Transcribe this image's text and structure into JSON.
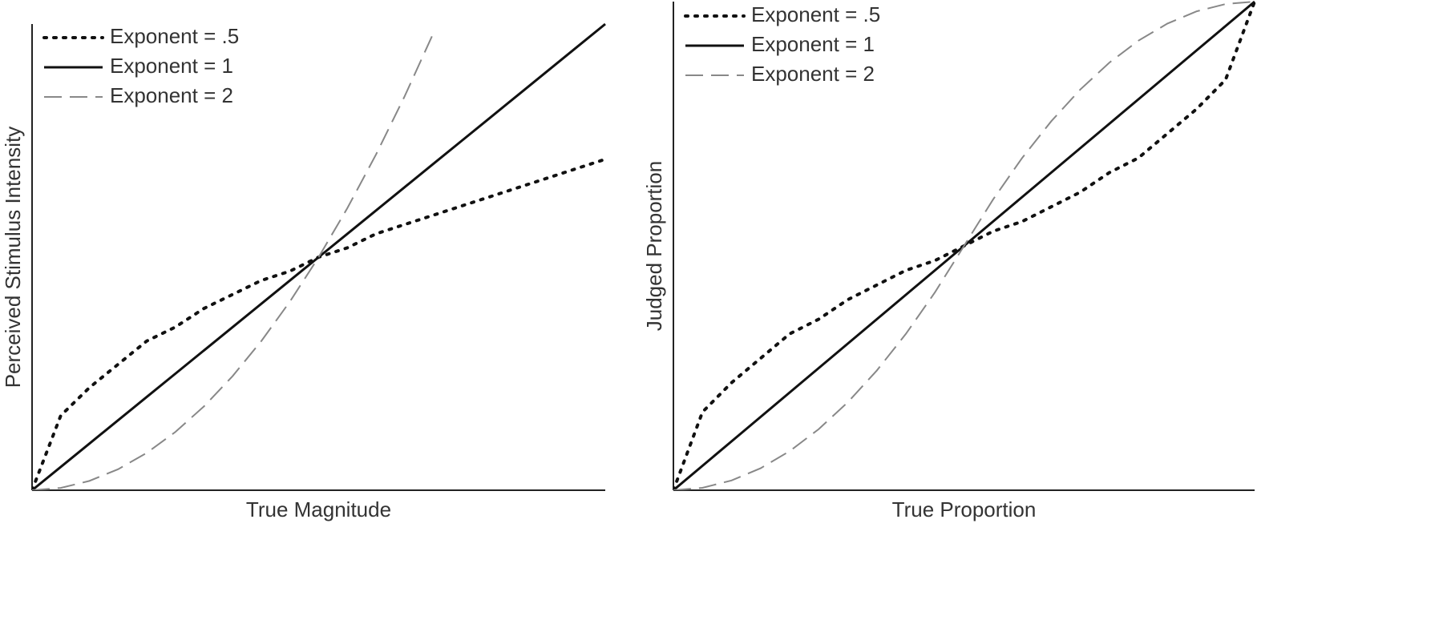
{
  "chart_data": [
    {
      "type": "line",
      "x_label": "True Magnitude",
      "y_label": "Perceived Stimulus Intensity",
      "xlim": [
        0,
        1
      ],
      "ylim": [
        0,
        1
      ],
      "legend": "upper left",
      "x": [
        0,
        0.05,
        0.1,
        0.15,
        0.2,
        0.25,
        0.3,
        0.35,
        0.4,
        0.45,
        0.5,
        0.55,
        0.6,
        0.65,
        0.7,
        0.75,
        0.8,
        0.85,
        0.9,
        0.95,
        1
      ],
      "series": [
        {
          "name": "Exponent = .5",
          "color": "#111111",
          "style": "dotted",
          "values": [
            0,
            0.16,
            0.22,
            0.27,
            0.32,
            0.35,
            0.39,
            0.42,
            0.45,
            0.47,
            0.5,
            0.52,
            0.55,
            0.57,
            0.59,
            0.61,
            0.63,
            0.65,
            0.67,
            0.69,
            0.71
          ]
        },
        {
          "name": "Exponent = 1",
          "color": "#111111",
          "style": "solid",
          "values": [
            0,
            0.05,
            0.1,
            0.15,
            0.2,
            0.25,
            0.3,
            0.35,
            0.4,
            0.45,
            0.5,
            0.55,
            0.6,
            0.65,
            0.7,
            0.75,
            0.8,
            0.85,
            0.9,
            0.95,
            1
          ]
        },
        {
          "name": "Exponent = 2",
          "color": "#888888",
          "style": "dashed",
          "values": [
            0,
            0.005,
            0.02,
            0.045,
            0.08,
            0.125,
            0.18,
            0.245,
            0.32,
            0.405,
            0.5,
            0.605,
            0.72,
            0.845,
            0.98,
            null,
            null,
            null,
            null,
            null,
            null
          ]
        }
      ]
    },
    {
      "type": "line",
      "x_label": "True Proportion",
      "y_label": "Judged Proportion",
      "xlim": [
        0,
        1
      ],
      "ylim": [
        0,
        1
      ],
      "legend": "upper left",
      "x": [
        0,
        0.05,
        0.1,
        0.15,
        0.2,
        0.25,
        0.3,
        0.35,
        0.4,
        0.45,
        0.5,
        0.55,
        0.6,
        0.65,
        0.7,
        0.75,
        0.8,
        0.85,
        0.9,
        0.95,
        1
      ],
      "series": [
        {
          "name": "Exponent = .5",
          "color": "#111111",
          "style": "dotted",
          "values": [
            0,
            0.16,
            0.22,
            0.27,
            0.32,
            0.35,
            0.39,
            0.42,
            0.45,
            0.47,
            0.5,
            0.53,
            0.55,
            0.58,
            0.61,
            0.65,
            0.68,
            0.73,
            0.78,
            0.84,
            1
          ]
        },
        {
          "name": "Exponent = 1",
          "color": "#111111",
          "style": "solid",
          "values": [
            0,
            0.05,
            0.1,
            0.15,
            0.2,
            0.25,
            0.3,
            0.35,
            0.4,
            0.45,
            0.5,
            0.55,
            0.6,
            0.65,
            0.7,
            0.75,
            0.8,
            0.85,
            0.9,
            0.95,
            1
          ]
        },
        {
          "name": "Exponent = 2",
          "color": "#888888",
          "style": "dashed",
          "values": [
            0,
            0.005,
            0.02,
            0.045,
            0.08,
            0.125,
            0.18,
            0.245,
            0.32,
            0.405,
            0.5,
            0.595,
            0.68,
            0.755,
            0.82,
            0.875,
            0.92,
            0.955,
            0.98,
            0.995,
            1
          ]
        }
      ]
    }
  ]
}
